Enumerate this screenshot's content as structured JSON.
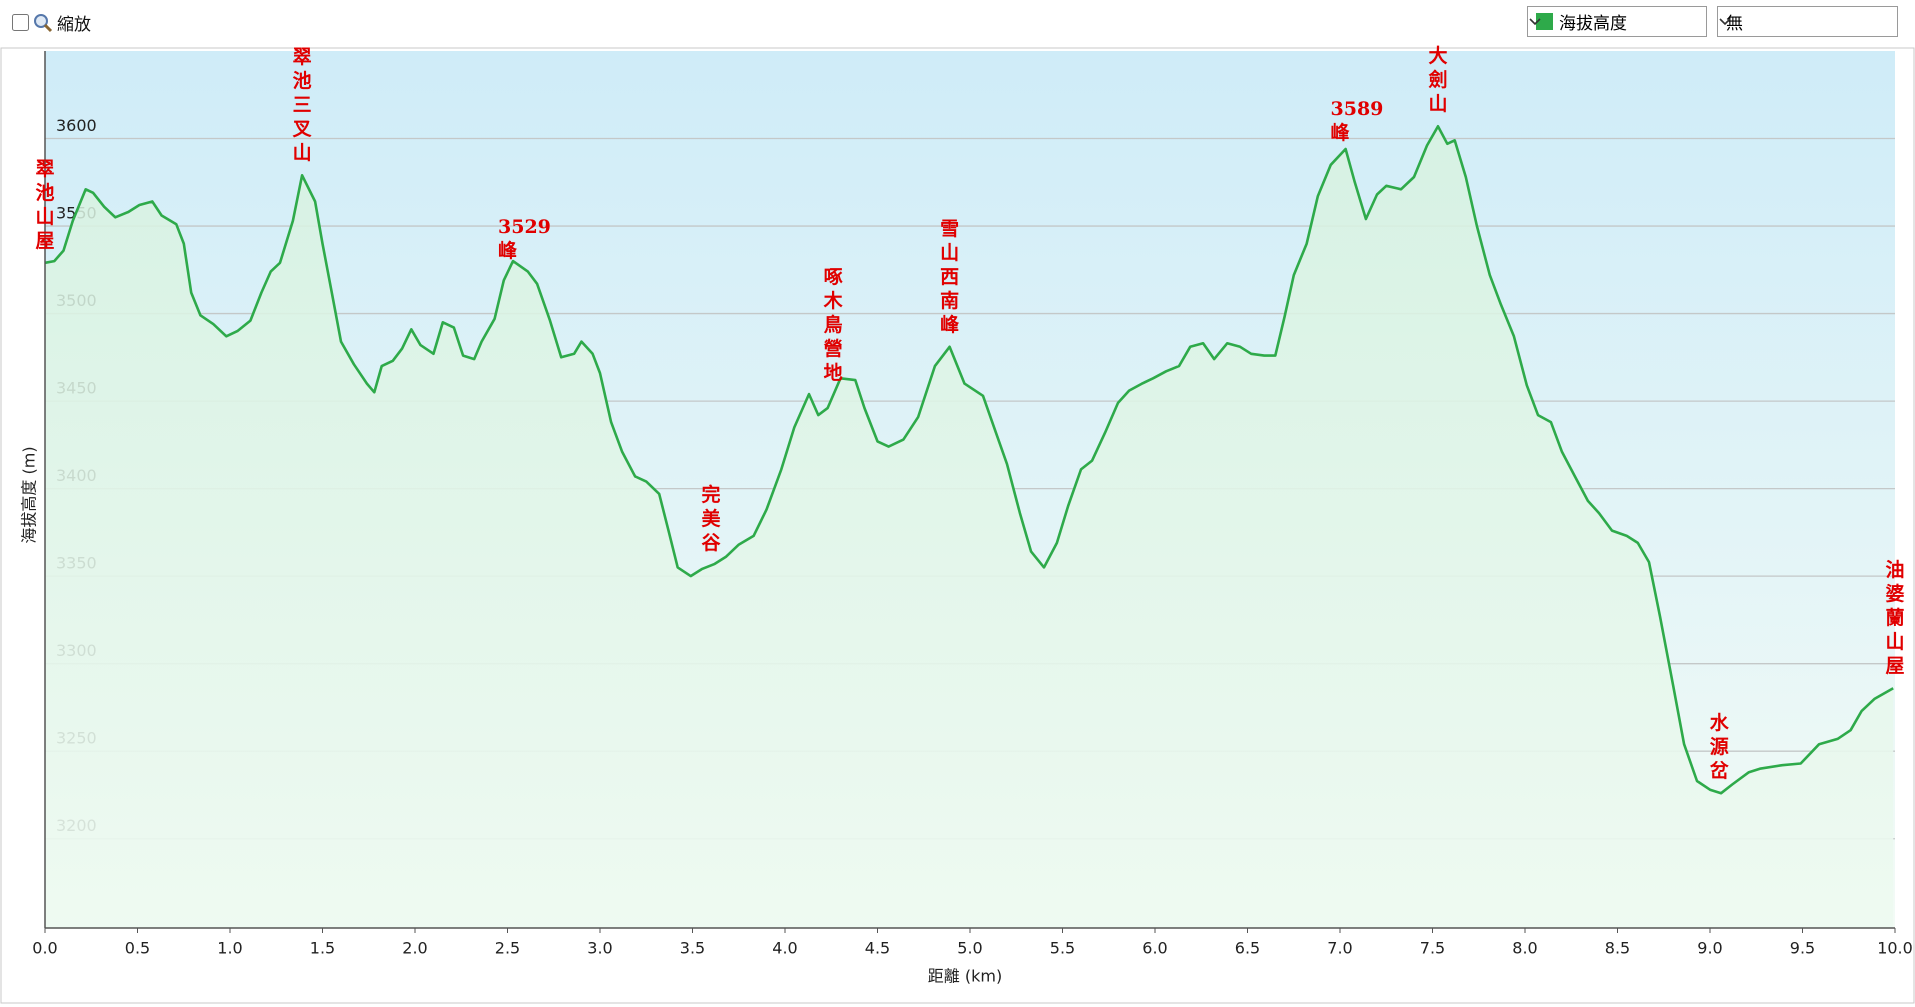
{
  "toolbar": {
    "zoom_label": "縮放",
    "overlay_select": "無"
  },
  "chart_data": {
    "type": "line",
    "x_label": "距離 (km)",
    "y_label": "海拔高度 (m)",
    "xlim": [
      0,
      10
    ],
    "ylim": [
      3149,
      3650
    ],
    "xticks": [
      {
        "value": 0,
        "label": "0.0"
      },
      0.5,
      {
        "value": 1,
        "label": "1.0"
      },
      1.5,
      {
        "value": 2,
        "label": "2.0"
      },
      2.5,
      {
        "value": 3,
        "label": "3.0"
      },
      3.5,
      {
        "value": 4,
        "label": "4.0"
      },
      4.5,
      {
        "value": 5,
        "label": "5.0"
      },
      5.5,
      {
        "value": 6,
        "label": "6.0"
      },
      6.5,
      {
        "value": 7,
        "label": "7.0"
      },
      7.5,
      {
        "value": 8,
        "label": "8.0"
      },
      8.5,
      {
        "value": 9,
        "label": "9.0"
      },
      9.5,
      {
        "value": 10,
        "label": "10.0"
      }
    ],
    "yticks": [
      3200,
      3250,
      3300,
      3350,
      3400,
      3450,
      3500,
      3550,
      3600
    ],
    "grid": true,
    "x": [
      0.0,
      0.05,
      0.1,
      0.15,
      0.22,
      0.26,
      0.32,
      0.38,
      0.45,
      0.51,
      0.58,
      0.63,
      0.71,
      0.75,
      0.79,
      0.84,
      0.91,
      0.98,
      1.04,
      1.11,
      1.17,
      1.22,
      1.27,
      1.34,
      1.39,
      1.46,
      1.5,
      1.55,
      1.6,
      1.67,
      1.74,
      1.78,
      1.82,
      1.88,
      1.93,
      1.98,
      2.03,
      2.1,
      2.15,
      2.21,
      2.26,
      2.32,
      2.36,
      2.43,
      2.48,
      2.53,
      2.61,
      2.66,
      2.73,
      2.79,
      2.86,
      2.9,
      2.96,
      3.0,
      3.06,
      3.12,
      3.19,
      3.25,
      3.32,
      3.37,
      3.42,
      3.49,
      3.55,
      3.62,
      3.68,
      3.75,
      3.83,
      3.9,
      3.98,
      4.05,
      4.13,
      4.18,
      4.23,
      4.3,
      4.38,
      4.43,
      4.5,
      4.56,
      4.64,
      4.72,
      4.81,
      4.89,
      4.97,
      5.07,
      5.14,
      5.2,
      5.27,
      5.33,
      5.4,
      5.47,
      5.53,
      5.6,
      5.66,
      5.73,
      5.8,
      5.86,
      5.93,
      5.99,
      6.06,
      6.13,
      6.19,
      6.26,
      6.32,
      6.39,
      6.46,
      6.52,
      6.59,
      6.65,
      6.7,
      6.75,
      6.82,
      6.88,
      6.95,
      7.03,
      7.08,
      7.14,
      7.2,
      7.25,
      7.33,
      7.4,
      7.47,
      7.53,
      7.58,
      7.62,
      7.68,
      7.74,
      7.81,
      7.87,
      7.94,
      8.01,
      8.07,
      8.14,
      8.2,
      8.27,
      8.34,
      8.4,
      8.47,
      8.55,
      8.61,
      8.67,
      8.73,
      8.8,
      8.86,
      8.93,
      9.0,
      9.06,
      9.12,
      9.21,
      9.27,
      9.39,
      9.49,
      9.59,
      9.69,
      9.76,
      9.82,
      9.89,
      9.99
    ],
    "series": [
      {
        "name": "海拔高度",
        "color": "#2eaa4a",
        "values": [
          3529,
          3530,
          3536,
          3553,
          3571,
          3569,
          3561,
          3555,
          3558,
          3562,
          3564,
          3556,
          3551,
          3540,
          3512,
          3499,
          3494,
          3487,
          3490,
          3496,
          3512,
          3524,
          3529,
          3553,
          3579,
          3564,
          3540,
          3512,
          3484,
          3471,
          3460,
          3455,
          3470,
          3473,
          3480,
          3491,
          3482,
          3477,
          3495,
          3492,
          3476,
          3474,
          3484,
          3497,
          3519,
          3530,
          3524,
          3517,
          3496,
          3475,
          3477,
          3484,
          3477,
          3466,
          3438,
          3421,
          3407,
          3404,
          3397,
          3376,
          3355,
          3350,
          3354,
          3357,
          3361,
          3368,
          3373,
          3388,
          3411,
          3435,
          3454,
          3442,
          3446,
          3463,
          3462,
          3446,
          3427,
          3424,
          3428,
          3441,
          3470,
          3481,
          3460,
          3453,
          3432,
          3414,
          3386,
          3364,
          3355,
          3369,
          3390,
          3411,
          3416,
          3432,
          3449,
          3456,
          3460,
          3463,
          3467,
          3470,
          3481,
          3483,
          3474,
          3483,
          3481,
          3477,
          3476,
          3476,
          3498,
          3522,
          3540,
          3567,
          3585,
          3594,
          3575,
          3554,
          3568,
          3573,
          3571,
          3578,
          3596,
          3607,
          3597,
          3599,
          3578,
          3550,
          3522,
          3505,
          3487,
          3459,
          3442,
          3438,
          3421,
          3407,
          3393,
          3386,
          3376,
          3373,
          3369,
          3358,
          3327,
          3288,
          3254,
          3233,
          3228,
          3226,
          3231,
          3238,
          3240,
          3242,
          3243,
          3254,
          3257,
          3262,
          3273,
          3280,
          3286
        ]
      }
    ],
    "annotations": [
      {
        "text": "翠池山屋",
        "x": 0
      },
      {
        "text": "翠池三叉山",
        "x": 1.39
      },
      {
        "text": "3529峰",
        "x": 2.5
      },
      {
        "text": "完美谷",
        "x": 3.6
      },
      {
        "text": "啄木鳥營地",
        "x": 4.26
      },
      {
        "text": "雪山西南峰",
        "x": 4.89
      },
      {
        "text": "3589峰",
        "x": 7.0
      },
      {
        "text": "大劍山",
        "x": 7.53
      },
      {
        "text": "水源岔",
        "x": 9.05
      },
      {
        "text": "油婆蘭山屋",
        "x": 10
      }
    ]
  }
}
